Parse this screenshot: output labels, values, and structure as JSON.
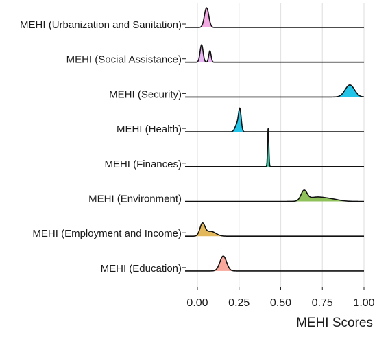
{
  "chart_data": {
    "type": "ridgeline",
    "title": "",
    "xlabel": "MEHI Scores",
    "ylabel": "",
    "xlim": [
      0,
      1
    ],
    "xticks": [
      0,
      0.25,
      0.5,
      0.75,
      1.0
    ],
    "xtick_labels": [
      "0.00",
      "0.25",
      "0.50",
      "0.75",
      "1.00"
    ],
    "grid": "vertical",
    "legend": "none",
    "series": [
      {
        "name": "MEHI (Urbanization and Sanitation)",
        "color": "#f2a8e0",
        "peaks": [
          {
            "center": 0.055,
            "width": 0.013,
            "height": 0.9
          }
        ]
      },
      {
        "name": "MEHI (Social Assistance)",
        "color": "#e8b4f4",
        "peaks": [
          {
            "center": 0.025,
            "width": 0.009,
            "height": 0.8
          },
          {
            "center": 0.075,
            "width": 0.007,
            "height": 0.52
          }
        ]
      },
      {
        "name": "MEHI (Security)",
        "color": "#22c4e8",
        "peaks": [
          {
            "center": 0.915,
            "width": 0.028,
            "height": 0.55
          }
        ]
      },
      {
        "name": "MEHI (Health)",
        "color": "#22c4e8",
        "peaks": [
          {
            "center": 0.255,
            "width": 0.008,
            "height": 0.95
          },
          {
            "center": 0.238,
            "width": 0.012,
            "height": 0.35
          }
        ]
      },
      {
        "name": "MEHI (Finances)",
        "color": "#1fc7a3",
        "peaks": [
          {
            "center": 0.425,
            "width": 0.0035,
            "height": 1.8
          }
        ]
      },
      {
        "name": "MEHI (Environment)",
        "color": "#8fc25a",
        "peaks": [
          {
            "center": 0.64,
            "width": 0.018,
            "height": 0.45
          },
          {
            "center": 0.71,
            "width": 0.05,
            "height": 0.18
          },
          {
            "center": 0.8,
            "width": 0.05,
            "height": 0.1
          }
        ]
      },
      {
        "name": "MEHI (Employment and Income)",
        "color": "#e3b85a",
        "peaks": [
          {
            "center": 0.03,
            "width": 0.015,
            "height": 0.55
          },
          {
            "center": 0.08,
            "width": 0.03,
            "height": 0.22
          }
        ]
      },
      {
        "name": "MEHI (Education)",
        "color": "#f7a79c",
        "peaks": [
          {
            "center": 0.155,
            "width": 0.02,
            "height": 0.68
          }
        ]
      }
    ]
  }
}
